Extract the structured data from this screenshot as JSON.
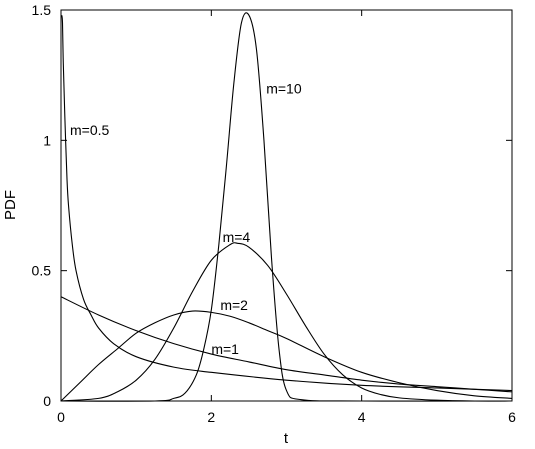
{
  "chart_data": {
    "type": "line",
    "title": "",
    "xlabel": "t",
    "ylabel": "PDF",
    "xlim": [
      0,
      6
    ],
    "ylim": [
      0,
      1.5
    ],
    "grid": false,
    "legend": "none",
    "x_ticks": [
      {
        "value": 0,
        "label": "0"
      },
      {
        "value": 2,
        "label": "2"
      },
      {
        "value": 4,
        "label": "4"
      },
      {
        "value": 6,
        "label": "6"
      }
    ],
    "y_ticks": [
      {
        "value": 0,
        "label": "0"
      },
      {
        "value": 0.5,
        "label": "0.5"
      },
      {
        "value": 1,
        "label": "1"
      },
      {
        "value": 1.5,
        "label": "1.5"
      }
    ],
    "series": [
      {
        "name": "m=0.5",
        "label_at": [
          0.12,
          1.02
        ],
        "x": [
          0.01,
          0.02,
          0.03,
          0.05,
          0.08,
          0.1,
          0.15,
          0.2,
          0.3,
          0.4,
          0.5,
          0.7,
          1.0,
          1.5,
          2.0,
          3.0,
          4.0,
          5.0,
          6.0
        ],
        "y": [
          1.48,
          1.45,
          1.3,
          1.1,
          0.85,
          0.75,
          0.6,
          0.5,
          0.39,
          0.33,
          0.28,
          0.22,
          0.17,
          0.13,
          0.11,
          0.08,
          0.06,
          0.05,
          0.04
        ]
      },
      {
        "name": "m=1",
        "label_at": [
          2.0,
          0.18
        ],
        "x": [
          0,
          0.5,
          1,
          1.5,
          2,
          2.5,
          3,
          3.5,
          4,
          4.5,
          5,
          5.5,
          6
        ],
        "y": [
          0.4,
          0.33,
          0.27,
          0.22,
          0.18,
          0.15,
          0.12,
          0.1,
          0.08,
          0.065,
          0.055,
          0.045,
          0.035
        ]
      },
      {
        "name": "m=2",
        "label_at": [
          2.12,
          0.35
        ],
        "x": [
          0,
          0.25,
          0.5,
          0.75,
          1,
          1.25,
          1.5,
          1.75,
          2,
          2.25,
          2.5,
          2.75,
          3,
          3.5,
          4,
          4.5,
          5,
          5.5,
          6
        ],
        "y": [
          0,
          0.07,
          0.14,
          0.2,
          0.26,
          0.3,
          0.33,
          0.345,
          0.34,
          0.325,
          0.3,
          0.27,
          0.24,
          0.17,
          0.11,
          0.07,
          0.04,
          0.02,
          0.01
        ]
      },
      {
        "name": "m=4",
        "label_at": [
          2.15,
          0.61
        ],
        "x": [
          0,
          0.5,
          0.75,
          1,
          1.25,
          1.5,
          1.75,
          2,
          2.25,
          2.35,
          2.5,
          2.75,
          3,
          3.25,
          3.5,
          3.75,
          4,
          4.25,
          4.5,
          5,
          5.5,
          6
        ],
        "y": [
          0,
          0.01,
          0.035,
          0.08,
          0.16,
          0.28,
          0.42,
          0.54,
          0.6,
          0.605,
          0.59,
          0.52,
          0.41,
          0.29,
          0.18,
          0.1,
          0.05,
          0.025,
          0.012,
          0.003,
          0,
          0
        ]
      },
      {
        "name": "m=10",
        "label_at": [
          2.73,
          1.18
        ],
        "x": [
          0,
          1.25,
          1.5,
          1.65,
          1.8,
          1.9,
          2.0,
          2.1,
          2.2,
          2.3,
          2.4,
          2.5,
          2.6,
          2.7,
          2.8,
          2.9,
          3.0,
          3.2,
          4.0,
          6.0
        ],
        "y": [
          0,
          0,
          0.01,
          0.03,
          0.1,
          0.2,
          0.35,
          0.6,
          0.9,
          1.22,
          1.45,
          1.48,
          1.35,
          1.0,
          0.55,
          0.2,
          0.04,
          0.005,
          0,
          0
        ]
      }
    ]
  }
}
